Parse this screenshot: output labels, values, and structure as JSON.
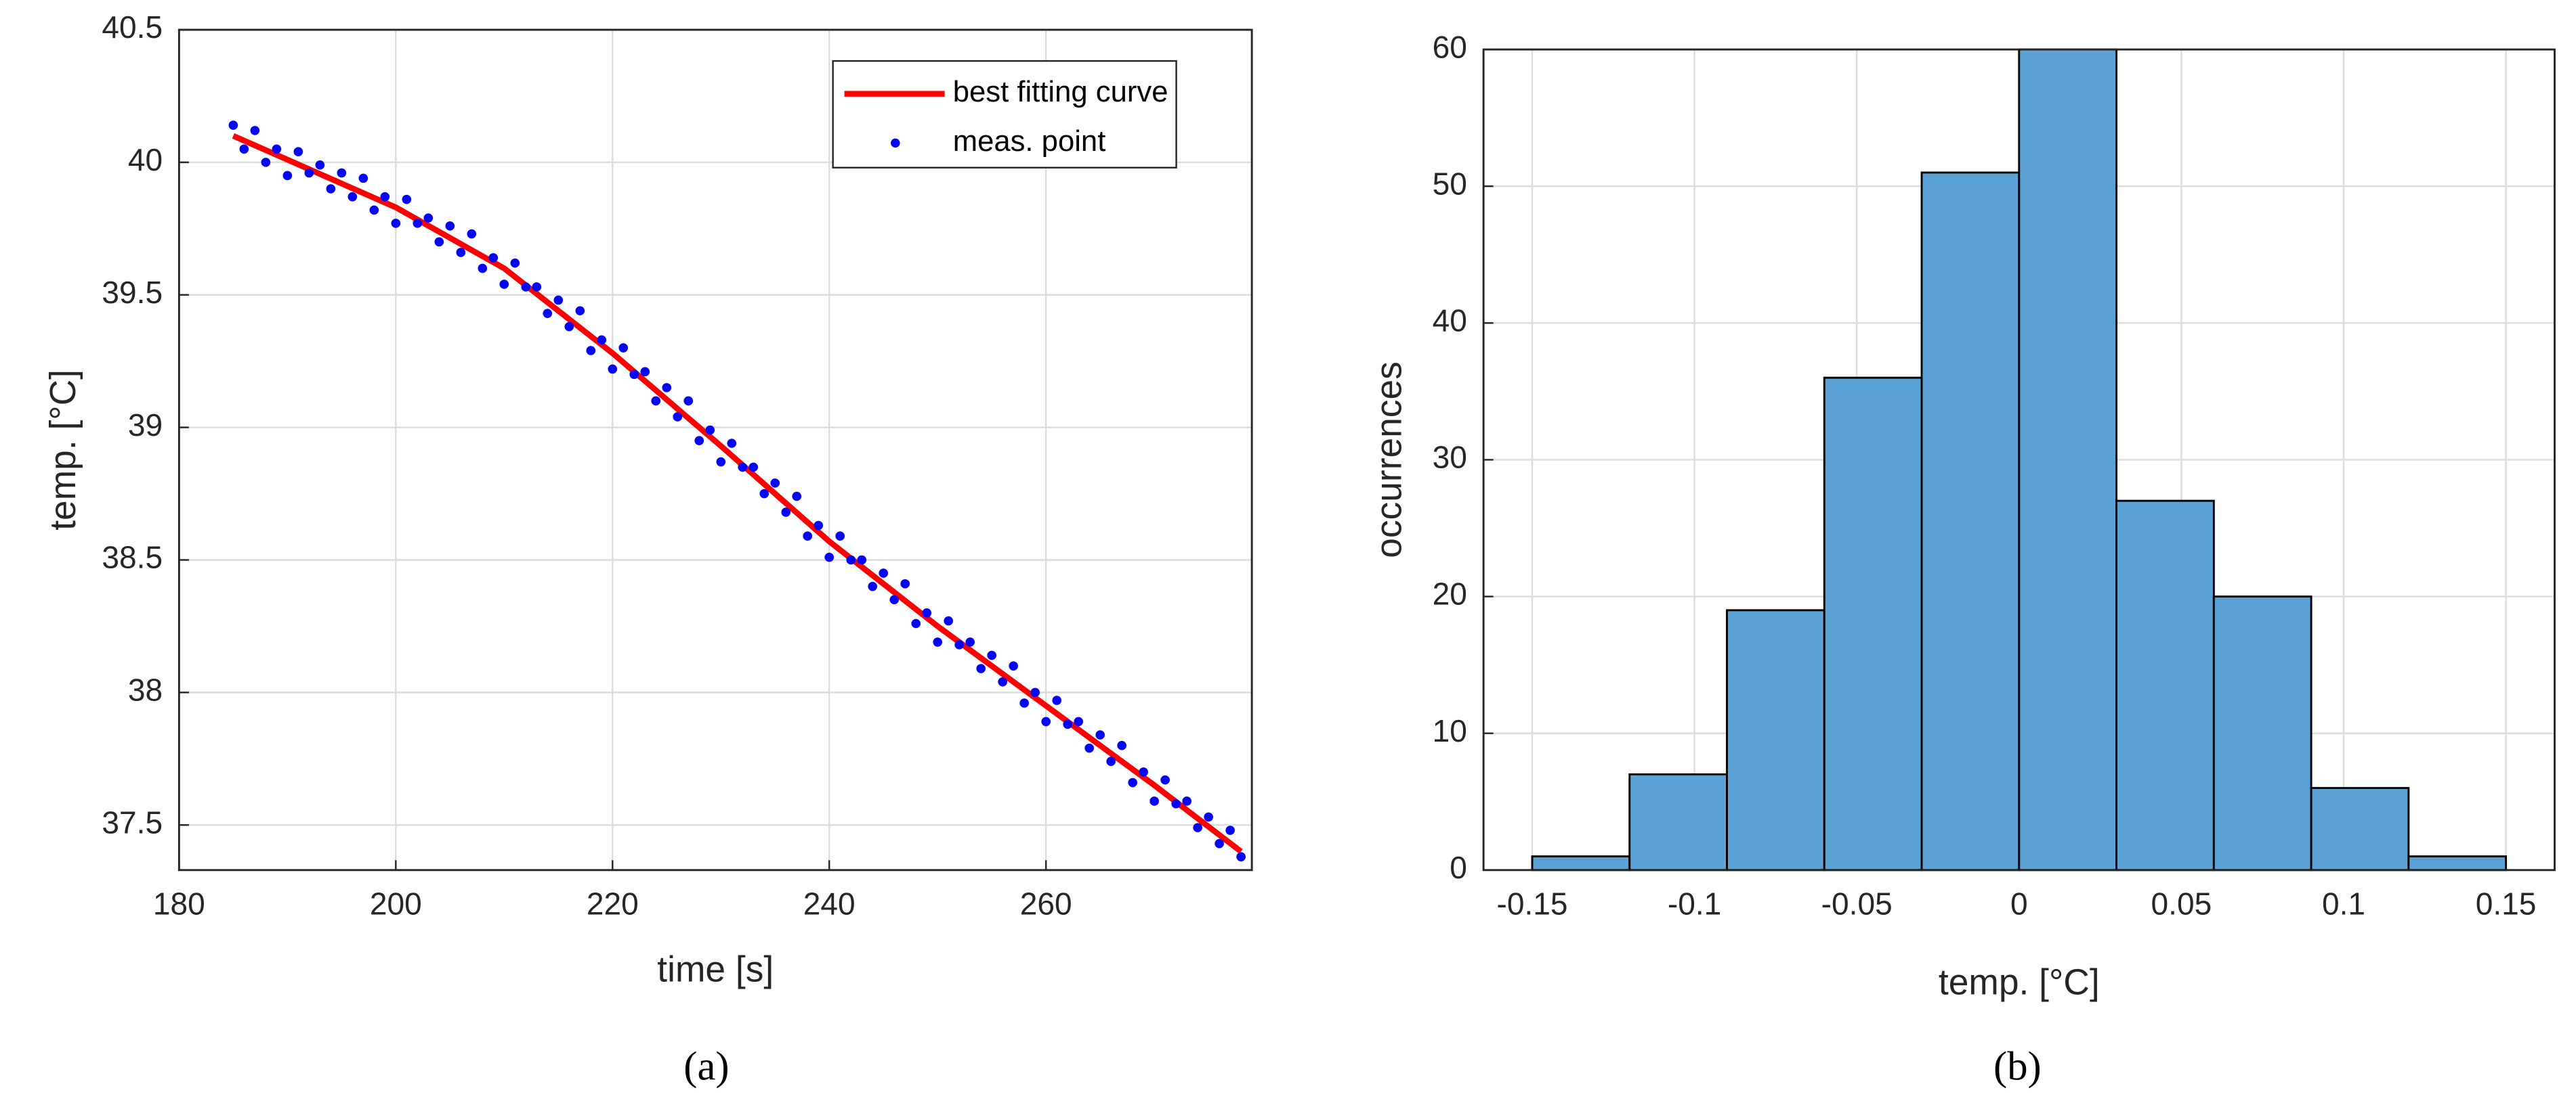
{
  "chart_data": [
    {
      "type": "scatter",
      "caption": "(a)",
      "xlabel": "time [s]",
      "ylabel": "temp. [°C]",
      "xlim": [
        180,
        279
      ],
      "ylim": [
        37.33,
        40.5
      ],
      "xticks": [
        180,
        200,
        220,
        240,
        260
      ],
      "yticks": [
        37.5,
        38,
        38.5,
        39,
        39.5,
        40,
        40.5
      ],
      "grid": true,
      "legend": "northeast",
      "series": [
        {
          "name": "best fitting curve",
          "type": "line",
          "color": "#ff0000",
          "x": [
            185,
            200,
            210,
            220,
            230,
            240,
            250,
            260,
            270,
            278
          ],
          "values": [
            40.1,
            39.83,
            39.6,
            39.28,
            38.93,
            38.57,
            38.25,
            37.95,
            37.65,
            37.4
          ]
        },
        {
          "name": "meas. point",
          "type": "scatter",
          "color": "#0000ff",
          "x": [
            185,
            186,
            187,
            188,
            189,
            190,
            191,
            192,
            193,
            194,
            195,
            196,
            197,
            198,
            199,
            200,
            201,
            202,
            203,
            204,
            205,
            206,
            207,
            208,
            209,
            210,
            211,
            212,
            213,
            214,
            215,
            216,
            217,
            218,
            219,
            220,
            221,
            222,
            223,
            224,
            225,
            226,
            227,
            228,
            229,
            230,
            231,
            232,
            233,
            234,
            235,
            236,
            237,
            238,
            239,
            240,
            241,
            242,
            243,
            244,
            245,
            246,
            247,
            248,
            249,
            250,
            251,
            252,
            253,
            254,
            255,
            256,
            257,
            258,
            259,
            260,
            261,
            262,
            263,
            264,
            265,
            266,
            267,
            268,
            269,
            270,
            271,
            272,
            273,
            274,
            275,
            276,
            277,
            278
          ],
          "values": [
            40.14,
            40.05,
            40.12,
            40.0,
            40.05,
            39.95,
            40.04,
            39.96,
            39.99,
            39.9,
            39.96,
            39.87,
            39.94,
            39.82,
            39.87,
            39.77,
            39.86,
            39.77,
            39.79,
            39.7,
            39.76,
            39.66,
            39.73,
            39.6,
            39.64,
            39.54,
            39.62,
            39.53,
            39.53,
            39.43,
            39.48,
            39.38,
            39.44,
            39.29,
            39.33,
            39.22,
            39.3,
            39.2,
            39.21,
            39.1,
            39.15,
            39.04,
            39.1,
            38.95,
            38.99,
            38.87,
            38.94,
            38.85,
            38.85,
            38.75,
            38.79,
            38.68,
            38.74,
            38.59,
            38.63,
            38.51,
            38.59,
            38.5,
            38.5,
            38.4,
            38.45,
            38.35,
            38.41,
            38.26,
            38.3,
            38.19,
            38.27,
            38.18,
            38.19,
            38.09,
            38.14,
            38.04,
            38.1,
            37.96,
            38.0,
            37.89,
            37.97,
            37.88,
            37.89,
            37.79,
            37.84,
            37.74,
            37.8,
            37.66,
            37.7,
            37.59,
            37.67,
            37.58,
            37.59,
            37.49,
            37.53,
            37.43,
            37.48,
            37.38
          ]
        }
      ]
    },
    {
      "type": "histogram",
      "caption": "(b)",
      "xlabel": "temp. [°C]",
      "ylabel": "occurrences",
      "xlim": [
        -0.165,
        0.165
      ],
      "ylim": [
        0,
        60
      ],
      "xticks": [
        -0.15,
        -0.1,
        -0.05,
        0,
        0.05,
        0.1,
        0.15
      ],
      "yticks": [
        0,
        10,
        20,
        30,
        40,
        50,
        60
      ],
      "grid": true,
      "color": "#5ba3d6",
      "bins": [
        -0.15,
        -0.12,
        -0.09,
        -0.06,
        -0.03,
        0,
        0.03,
        0.06,
        0.09,
        0.12,
        0.15
      ],
      "values": [
        1,
        7,
        19,
        36,
        51,
        60,
        27,
        20,
        6,
        1
      ]
    }
  ]
}
